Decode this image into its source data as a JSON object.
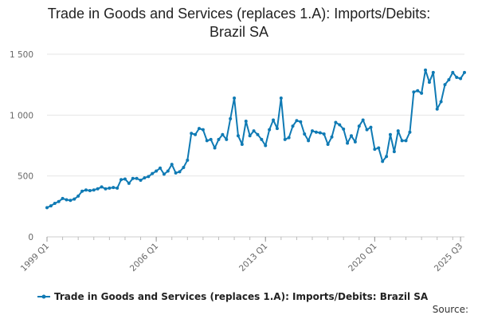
{
  "chart_data": {
    "type": "line",
    "title_line1": "Trade in Goods and Services (replaces 1.A): Imports/Debits:",
    "title_line2": "Brazil SA",
    "xlabel": "",
    "ylabel": "",
    "ylim": [
      0,
      1500
    ],
    "y_ticks": [
      0,
      500,
      1000,
      1500
    ],
    "y_tick_labels": [
      "0",
      "500",
      "1 000",
      "1 500"
    ],
    "x_tick_labels": [
      "1999 Q1",
      "2006 Q1",
      "2013 Q1",
      "2020 Q1",
      "2025 Q3"
    ],
    "x_tick_indices": [
      0,
      28,
      56,
      84,
      106
    ],
    "grid": true,
    "legend_position": "bottom",
    "series": [
      {
        "name": "Trade in Goods and Services (replaces 1.A): Imports/Debits: Brazil SA",
        "color": "#0f7ab4",
        "values": [
          240,
          255,
          275,
          290,
          315,
          305,
          300,
          310,
          335,
          375,
          385,
          380,
          385,
          395,
          410,
          395,
          400,
          405,
          400,
          470,
          475,
          440,
          480,
          480,
          465,
          485,
          495,
          520,
          540,
          565,
          515,
          540,
          595,
          525,
          535,
          570,
          630,
          850,
          840,
          890,
          880,
          790,
          800,
          730,
          800,
          840,
          800,
          970,
          1140,
          830,
          760,
          950,
          830,
          870,
          840,
          800,
          750,
          880,
          960,
          890,
          1140,
          800,
          815,
          910,
          955,
          945,
          845,
          790,
          870,
          860,
          855,
          845,
          760,
          820,
          940,
          920,
          885,
          770,
          830,
          780,
          910,
          960,
          880,
          900,
          720,
          730,
          620,
          660,
          840,
          700,
          870,
          790,
          790,
          860,
          1190,
          1200,
          1180,
          1370,
          1270,
          1350,
          1050,
          1110,
          1250,
          1290,
          1350,
          1310,
          1300,
          1350
        ]
      }
    ]
  },
  "source": {
    "label": "Source:"
  }
}
